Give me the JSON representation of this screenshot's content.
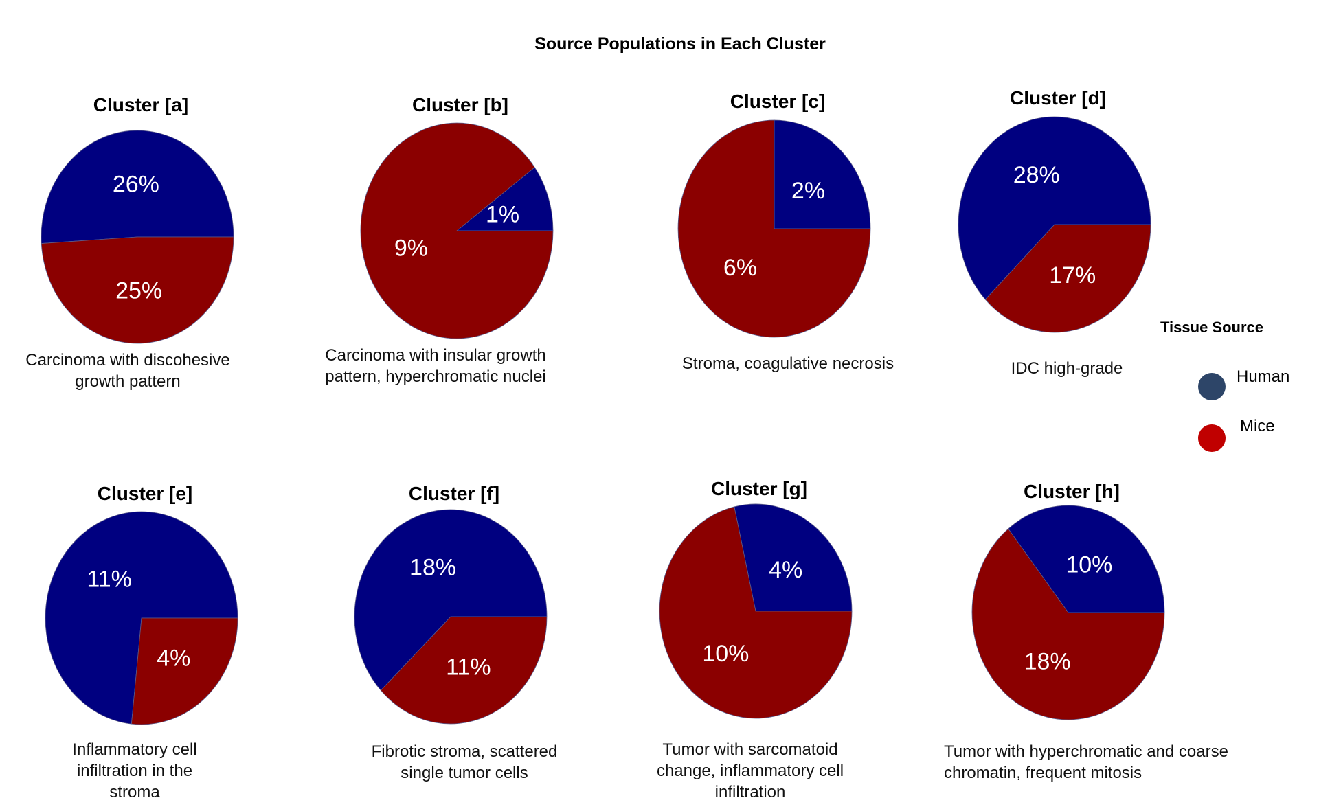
{
  "chart_data": {
    "type": "pie",
    "title": "Source Populations in Each Cluster",
    "legend": {
      "title": "Tissue Source",
      "placement": "right",
      "entries": [
        {
          "name": "Human",
          "color": "#2d4568"
        },
        {
          "name": "Mice",
          "color": "#c00000"
        }
      ]
    },
    "slice_colors": {
      "Human": "#000080",
      "Mice": "#8b0000"
    },
    "panels": [
      {
        "title": "Cluster [a]",
        "caption": [
          "Carcinoma with discohesive",
          "growth pattern"
        ],
        "slices": [
          {
            "name": "Human",
            "value": 26,
            "label": "26%"
          },
          {
            "name": "Mice",
            "value": 25,
            "label": "25%"
          }
        ]
      },
      {
        "title": "Cluster [b]",
        "caption": [
          "Carcinoma with insular growth",
          "pattern, hyperchromatic nuclei"
        ],
        "slices": [
          {
            "name": "Human",
            "value": 1,
            "label": "1%"
          },
          {
            "name": "Mice",
            "value": 9,
            "label": "9%"
          }
        ]
      },
      {
        "title": "Cluster [c]",
        "caption": [
          "Stroma, coagulative necrosis"
        ],
        "slices": [
          {
            "name": "Human",
            "value": 2,
            "label": "2%"
          },
          {
            "name": "Mice",
            "value": 6,
            "label": "6%"
          }
        ]
      },
      {
        "title": "Cluster [d]",
        "caption": [
          "IDC high-grade"
        ],
        "slices": [
          {
            "name": "Human",
            "value": 28,
            "label": "28%"
          },
          {
            "name": "Mice",
            "value": 17,
            "label": "17%"
          }
        ]
      },
      {
        "title": "Cluster [e]",
        "caption": [
          "Inflammatory cell",
          "infiltration in the",
          "stroma"
        ],
        "slices": [
          {
            "name": "Human",
            "value": 11,
            "label": "11%"
          },
          {
            "name": "Mice",
            "value": 4,
            "label": "4%"
          }
        ]
      },
      {
        "title": "Cluster [f]",
        "caption": [
          "Fibrotic stroma, scattered",
          "single tumor cells"
        ],
        "slices": [
          {
            "name": "Human",
            "value": 18,
            "label": "18%"
          },
          {
            "name": "Mice",
            "value": 11,
            "label": "11%"
          }
        ]
      },
      {
        "title": "Cluster [g]",
        "caption": [
          "Tumor with sarcomatoid",
          "change, inflammatory cell",
          "infiltration"
        ],
        "slices": [
          {
            "name": "Human",
            "value": 4,
            "label": "4%"
          },
          {
            "name": "Mice",
            "value": 10,
            "label": "10%"
          }
        ]
      },
      {
        "title": "Cluster [h]",
        "caption": [
          "Tumor with hyperchromatic and coarse",
          "chromatin, frequent mitosis"
        ],
        "slices": [
          {
            "name": "Human",
            "value": 10,
            "label": "10%"
          },
          {
            "name": "Mice",
            "value": 18,
            "label": "18%"
          }
        ]
      }
    ]
  }
}
